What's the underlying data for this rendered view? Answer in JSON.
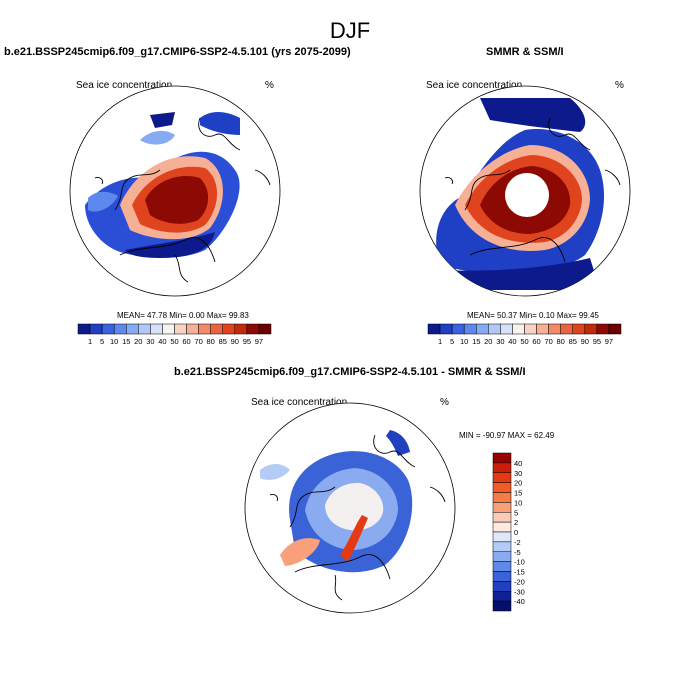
{
  "page_title": "DJF",
  "panels": [
    {
      "title": "b.e21.BSSP245cmip6.f09_g17.CMIP6-SSP2-4.5.101 (yrs 2075-2099)",
      "variable": "Sea ice concentration",
      "units": "%",
      "stats": "MEAN=  47.78   Min=    0.00  Max=  99.83",
      "colorbar_labels": [
        "1",
        "5",
        "10",
        "15",
        "20",
        "30",
        "40",
        "50",
        "60",
        "70",
        "80",
        "85",
        "90",
        "95",
        "97"
      ]
    },
    {
      "title": "SMMR & SSM/I",
      "variable": "Sea ice concentration",
      "units": "%",
      "stats": "MEAN=  50.37   Min=    0.10  Max=  99.45",
      "colorbar_labels": [
        "1",
        "5",
        "10",
        "15",
        "20",
        "30",
        "40",
        "50",
        "60",
        "70",
        "80",
        "85",
        "90",
        "95",
        "97"
      ]
    },
    {
      "title": "b.e21.BSSP245cmip6.f09_g17.CMIP6-SSP2-4.5.101 - SMMR & SSM/I",
      "variable": "Sea ice concentration",
      "units": "%",
      "stats": "MIN = -90.97 MAX =  62.49",
      "colorbar_labels": [
        "40",
        "30",
        "20",
        "15",
        "10",
        "5",
        "2",
        "0",
        "-2",
        "-5",
        "-10",
        "-15",
        "-20",
        "-30",
        "-40"
      ]
    }
  ],
  "palettes": {
    "concentration": [
      "#0d1a8c",
      "#1f3fc4",
      "#3a63e0",
      "#5d88ee",
      "#86aaf4",
      "#b0c8f8",
      "#d6e2fb",
      "#f7f3ee",
      "#f9d2c2",
      "#f6b095",
      "#f28a68",
      "#eb6440",
      "#e0441f",
      "#c22a0c",
      "#8c0a03",
      "#6a0000"
    ],
    "difference": [
      "#9a0000",
      "#c81e0a",
      "#e43a12",
      "#f25a26",
      "#f67c45",
      "#f8a07a",
      "#fbcbb6",
      "#fde9e0",
      "#dde8fb",
      "#b4cbf6",
      "#8aabef",
      "#5f89e6",
      "#3b63d8",
      "#2140c0",
      "#0e2295",
      "#050f6a"
    ]
  }
}
